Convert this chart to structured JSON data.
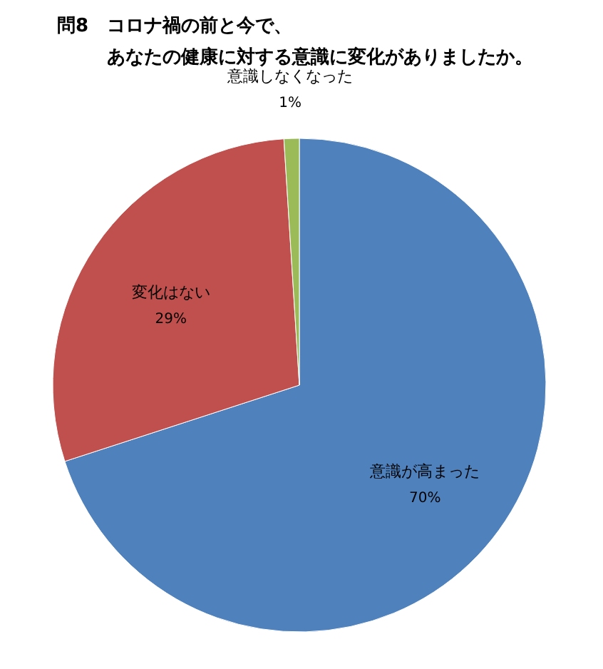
{
  "chart_data": {
    "type": "pie",
    "title": "問8　コロナ禍の前と今で、",
    "subtitle": "あなたの健康に対する意識に変化がありましたか。",
    "categories": [
      "意識が高まった",
      "変化はない",
      "意識しなくなった"
    ],
    "values": [
      70,
      29,
      1
    ],
    "value_labels": [
      "70%",
      "29%",
      "1%"
    ],
    "colors": [
      "#4f81bd",
      "#c0504d",
      "#9bbb59"
    ],
    "legend": false
  }
}
